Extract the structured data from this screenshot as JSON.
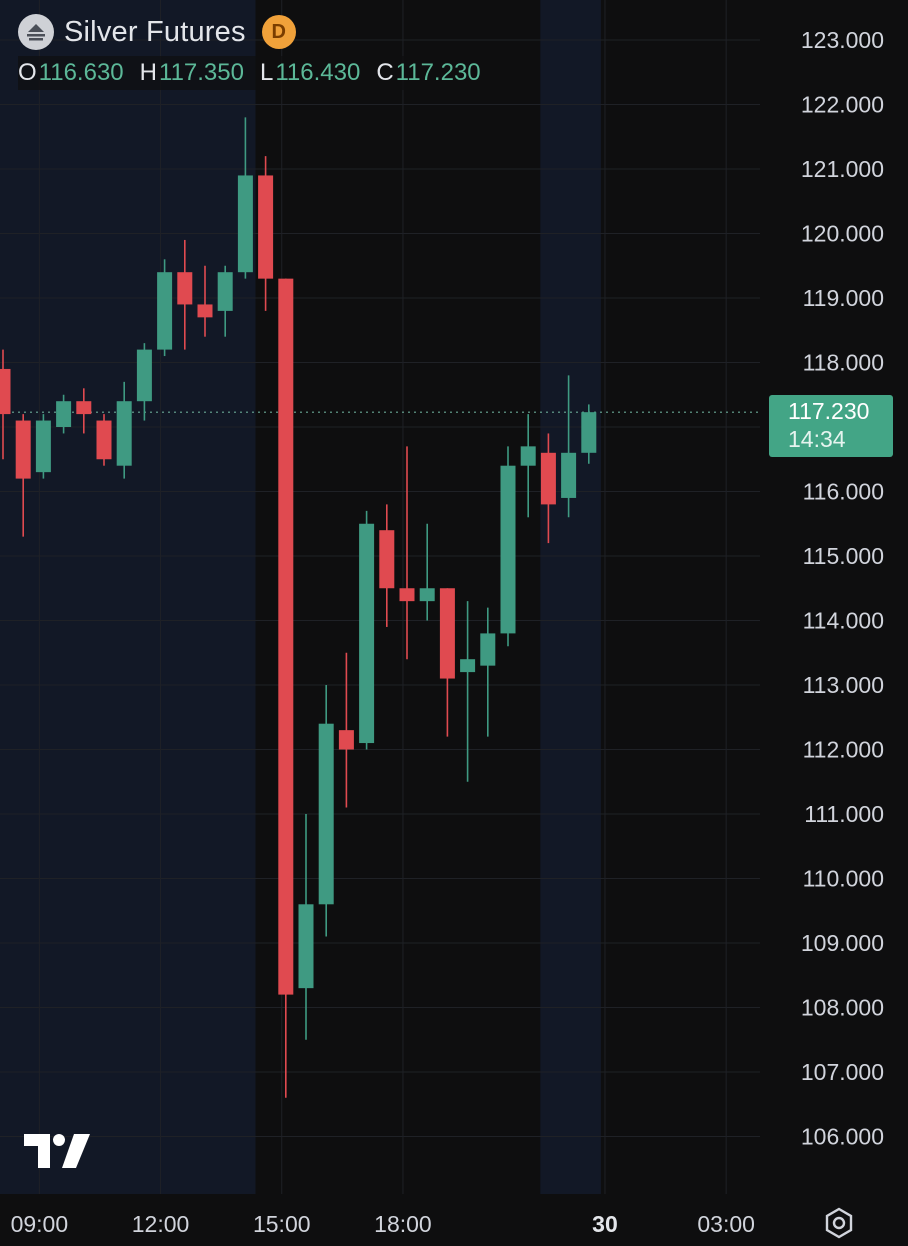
{
  "header": {
    "title": "Silver Futures",
    "badge": "D",
    "ohlc": [
      {
        "key": "O",
        "value": "116.630"
      },
      {
        "key": "H",
        "value": "117.350"
      },
      {
        "key": "L",
        "value": "116.430"
      },
      {
        "key": "C",
        "value": "117.230"
      }
    ]
  },
  "price_label": {
    "price": "117.230",
    "countdown": "14:34"
  },
  "colors": {
    "up": "#3f9a82",
    "down": "#e04a50",
    "background": "#0e0e0f",
    "session_shade": "#121826",
    "grid": "#1f2126",
    "price_tag": "#43a586"
  },
  "icons": [
    "symbol-icon",
    "tradingview-logo-icon",
    "settings-gear-icon"
  ],
  "chart_data": {
    "type": "candlestick",
    "y_axis": {
      "min": 105.2,
      "max": 123.6,
      "ticks": [
        123,
        122,
        121,
        120,
        119,
        118,
        116,
        115,
        114,
        113,
        112,
        111,
        110,
        109,
        108,
        107,
        106
      ],
      "tick_labels": [
        "123.000",
        "122.000",
        "121.000",
        "120.000",
        "119.000",
        "118.000",
        "116.000",
        "115.000",
        "114.000",
        "113.000",
        "112.000",
        "111.000",
        "110.000",
        "109.000",
        "108.000",
        "107.000",
        "106.000"
      ]
    },
    "x_axis": {
      "labels": [
        {
          "text": "09:00",
          "bar": 1.8
        },
        {
          "text": "12:00",
          "bar": 7.8
        },
        {
          "text": "15:00",
          "bar": 13.8
        },
        {
          "text": "18:00",
          "bar": 19.8
        },
        {
          "text": "30",
          "bar": 29.8,
          "bold": true
        },
        {
          "text": "03:00",
          "bar": 35.8
        }
      ]
    },
    "last_price": 117.23,
    "grid": true,
    "candles": [
      {
        "o": 117.9,
        "h": 118.2,
        "l": 116.5,
        "c": 117.2
      },
      {
        "o": 117.1,
        "h": 117.2,
        "l": 115.3,
        "c": 116.2
      },
      {
        "o": 116.3,
        "h": 117.2,
        "l": 116.2,
        "c": 117.1
      },
      {
        "o": 117.0,
        "h": 117.5,
        "l": 116.9,
        "c": 117.4
      },
      {
        "o": 117.4,
        "h": 117.6,
        "l": 116.9,
        "c": 117.2
      },
      {
        "o": 117.1,
        "h": 117.2,
        "l": 116.4,
        "c": 116.5
      },
      {
        "o": 116.4,
        "h": 117.7,
        "l": 116.2,
        "c": 117.4
      },
      {
        "o": 117.4,
        "h": 118.3,
        "l": 117.1,
        "c": 118.2
      },
      {
        "o": 118.2,
        "h": 119.6,
        "l": 118.1,
        "c": 119.4
      },
      {
        "o": 119.4,
        "h": 119.9,
        "l": 118.2,
        "c": 118.9
      },
      {
        "o": 118.9,
        "h": 119.5,
        "l": 118.4,
        "c": 118.7
      },
      {
        "o": 118.8,
        "h": 119.5,
        "l": 118.4,
        "c": 119.4
      },
      {
        "o": 119.4,
        "h": 121.8,
        "l": 119.3,
        "c": 120.9
      },
      {
        "o": 120.9,
        "h": 121.2,
        "l": 118.8,
        "c": 119.3
      },
      {
        "o": 119.3,
        "h": 119.3,
        "l": 106.6,
        "c": 108.2
      },
      {
        "o": 108.3,
        "h": 111.0,
        "l": 107.5,
        "c": 109.6
      },
      {
        "o": 109.6,
        "h": 113.0,
        "l": 109.1,
        "c": 112.4
      },
      {
        "o": 112.3,
        "h": 113.5,
        "l": 111.1,
        "c": 112.0
      },
      {
        "o": 112.1,
        "h": 115.7,
        "l": 112.0,
        "c": 115.5
      },
      {
        "o": 115.4,
        "h": 115.8,
        "l": 113.9,
        "c": 114.5
      },
      {
        "o": 114.5,
        "h": 116.7,
        "l": 113.4,
        "c": 114.3
      },
      {
        "o": 114.3,
        "h": 115.5,
        "l": 114.0,
        "c": 114.5
      },
      {
        "o": 114.5,
        "h": 114.5,
        "l": 112.2,
        "c": 113.1
      },
      {
        "o": 113.2,
        "h": 114.3,
        "l": 111.5,
        "c": 113.4
      },
      {
        "o": 113.3,
        "h": 114.2,
        "l": 112.2,
        "c": 113.8
      },
      {
        "o": 113.8,
        "h": 116.7,
        "l": 113.6,
        "c": 116.4
      },
      {
        "o": 116.4,
        "h": 117.2,
        "l": 115.6,
        "c": 116.7
      },
      {
        "o": 116.6,
        "h": 116.9,
        "l": 115.2,
        "c": 115.8
      },
      {
        "o": 115.9,
        "h": 117.8,
        "l": 115.6,
        "c": 116.6
      },
      {
        "o": 116.6,
        "h": 117.35,
        "l": 116.43,
        "c": 117.23
      }
    ]
  }
}
